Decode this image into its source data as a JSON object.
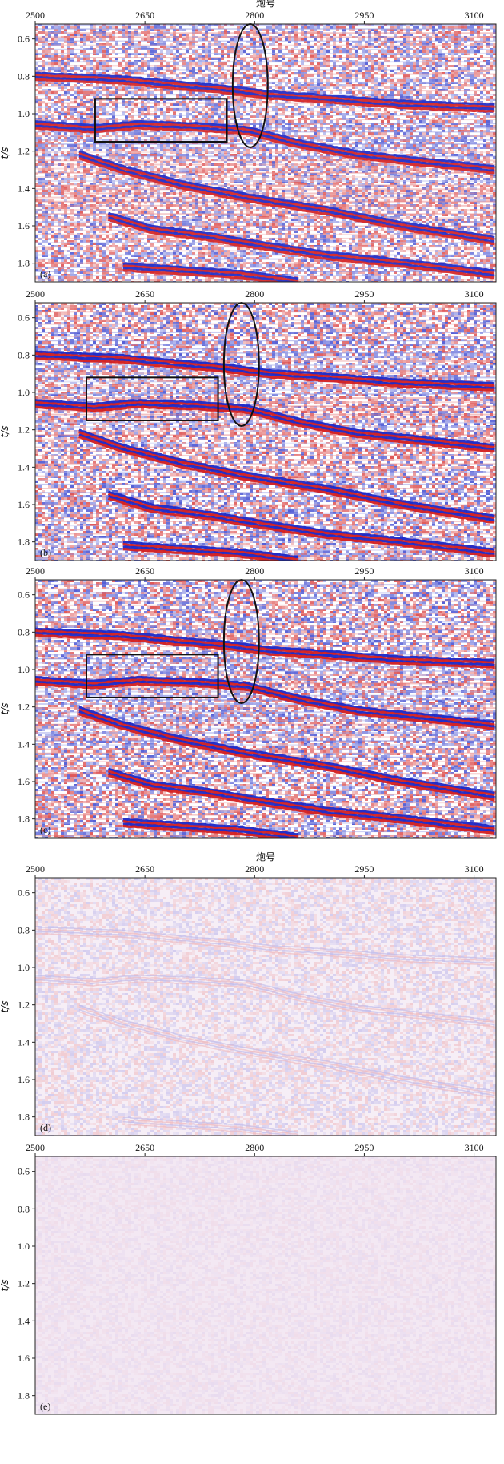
{
  "figure": {
    "x_axis_title": "炮号",
    "y_axis_title": "t/s"
  },
  "chart_data": [
    {
      "type": "heatmap",
      "panel": "(a)",
      "colormap": [
        "#d42020",
        "#ffffff",
        "#1a28c8"
      ],
      "xlim": [
        2500,
        3130
      ],
      "ylim": [
        1.9,
        0.52
      ],
      "x_ticks": [
        2500,
        2650,
        2800,
        2950,
        3100
      ],
      "x_tick_labels": [
        "2500",
        "2650",
        "2800",
        "2950",
        "3100"
      ],
      "y_ticks": [
        0.6,
        0.8,
        1.0,
        1.2,
        1.4,
        1.6,
        1.8
      ],
      "y_tick_labels": [
        "0.6",
        "0.8",
        "1.0",
        "1.2",
        "1.4",
        "1.6",
        "1.8"
      ],
      "x_axis_title_shown": true,
      "intensity": 0.95,
      "reflectors": [
        {
          "x": [
            2500,
            2620,
            2700,
            2760,
            2820,
            2900,
            3000,
            3130
          ],
          "t": [
            0.8,
            0.82,
            0.85,
            0.87,
            0.9,
            0.92,
            0.95,
            0.97
          ]
        },
        {
          "x": [
            2500,
            2580,
            2640,
            2720,
            2790,
            2860,
            2940,
            3130
          ],
          "t": [
            1.06,
            1.08,
            1.06,
            1.07,
            1.09,
            1.16,
            1.22,
            1.3
          ]
        },
        {
          "x": [
            2560,
            2620,
            2700,
            2790,
            2900,
            3000,
            3130
          ],
          "t": [
            1.22,
            1.3,
            1.38,
            1.45,
            1.52,
            1.6,
            1.68
          ]
        },
        {
          "x": [
            2600,
            2660,
            2740,
            2800,
            2900,
            3000,
            3130
          ],
          "t": [
            1.55,
            1.62,
            1.66,
            1.7,
            1.76,
            1.8,
            1.86
          ]
        },
        {
          "x": [
            2620,
            2700,
            2780,
            2860
          ],
          "t": [
            1.82,
            1.84,
            1.86,
            1.9
          ]
        }
      ],
      "annotations": [
        {
          "shape": "rectangle",
          "x": [
            2582,
            2762
          ],
          "t": [
            0.92,
            1.15
          ]
        },
        {
          "shape": "ellipse",
          "x": [
            2770,
            2818
          ],
          "t": [
            0.52,
            1.18
          ]
        }
      ]
    },
    {
      "type": "heatmap",
      "panel": "(b)",
      "colormap": [
        "#d42020",
        "#ffffff",
        "#1a28c8"
      ],
      "xlim": [
        2500,
        3130
      ],
      "ylim": [
        1.9,
        0.52
      ],
      "x_ticks": [
        2500,
        2650,
        2800,
        2950,
        3100
      ],
      "x_tick_labels": [
        "2500",
        "2650",
        "2800",
        "2950",
        "3100"
      ],
      "y_ticks": [
        0.6,
        0.8,
        1.0,
        1.2,
        1.4,
        1.6,
        1.8
      ],
      "y_tick_labels": [
        "0.6",
        "0.8",
        "1.0",
        "1.2",
        "1.4",
        "1.6",
        "1.8"
      ],
      "x_axis_title_shown": false,
      "intensity": 1.0,
      "reflectors": [
        {
          "x": [
            2500,
            2620,
            2700,
            2760,
            2820,
            2900,
            3000,
            3130
          ],
          "t": [
            0.8,
            0.82,
            0.85,
            0.87,
            0.9,
            0.92,
            0.95,
            0.97
          ]
        },
        {
          "x": [
            2500,
            2580,
            2640,
            2720,
            2790,
            2860,
            2940,
            3130
          ],
          "t": [
            1.06,
            1.08,
            1.06,
            1.07,
            1.09,
            1.16,
            1.22,
            1.3
          ]
        },
        {
          "x": [
            2560,
            2620,
            2700,
            2790,
            2900,
            3000,
            3130
          ],
          "t": [
            1.22,
            1.3,
            1.38,
            1.45,
            1.52,
            1.6,
            1.68
          ]
        },
        {
          "x": [
            2600,
            2660,
            2740,
            2800,
            2900,
            3000,
            3130
          ],
          "t": [
            1.55,
            1.62,
            1.66,
            1.7,
            1.76,
            1.8,
            1.86
          ]
        },
        {
          "x": [
            2620,
            2700,
            2780,
            2860
          ],
          "t": [
            1.82,
            1.84,
            1.86,
            1.9
          ]
        }
      ],
      "annotations": [
        {
          "shape": "rectangle",
          "x": [
            2570,
            2750
          ],
          "t": [
            0.92,
            1.15
          ]
        },
        {
          "shape": "ellipse",
          "x": [
            2758,
            2806
          ],
          "t": [
            0.52,
            1.18
          ]
        }
      ]
    },
    {
      "type": "heatmap",
      "panel": "(c)",
      "colormap": [
        "#d42020",
        "#ffffff",
        "#1a28c8"
      ],
      "xlim": [
        2500,
        3130
      ],
      "ylim": [
        1.9,
        0.52
      ],
      "x_ticks": [
        2500,
        2650,
        2800,
        2950,
        3100
      ],
      "x_tick_labels": [
        "2500",
        "2650",
        "2800",
        "2950",
        "3100"
      ],
      "y_ticks": [
        0.6,
        0.8,
        1.0,
        1.2,
        1.4,
        1.6,
        1.8
      ],
      "y_tick_labels": [
        "0.6",
        "0.8",
        "1.0",
        "1.2",
        "1.4",
        "1.6",
        "1.8"
      ],
      "x_axis_title_shown": false,
      "intensity": 1.0,
      "reflectors": [
        {
          "x": [
            2500,
            2620,
            2700,
            2760,
            2820,
            2900,
            3000,
            3130
          ],
          "t": [
            0.8,
            0.82,
            0.85,
            0.87,
            0.9,
            0.92,
            0.95,
            0.97
          ]
        },
        {
          "x": [
            2500,
            2580,
            2640,
            2720,
            2790,
            2860,
            2940,
            3130
          ],
          "t": [
            1.06,
            1.08,
            1.06,
            1.07,
            1.09,
            1.16,
            1.22,
            1.3
          ]
        },
        {
          "x": [
            2560,
            2620,
            2700,
            2790,
            2900,
            3000,
            3130
          ],
          "t": [
            1.22,
            1.3,
            1.38,
            1.45,
            1.52,
            1.6,
            1.68
          ]
        },
        {
          "x": [
            2600,
            2660,
            2740,
            2800,
            2900,
            3000,
            3130
          ],
          "t": [
            1.55,
            1.62,
            1.66,
            1.7,
            1.76,
            1.8,
            1.86
          ]
        },
        {
          "x": [
            2620,
            2700,
            2780,
            2860
          ],
          "t": [
            1.82,
            1.84,
            1.86,
            1.9
          ]
        }
      ],
      "annotations": [
        {
          "shape": "rectangle",
          "x": [
            2570,
            2750
          ],
          "t": [
            0.92,
            1.15
          ]
        },
        {
          "shape": "ellipse",
          "x": [
            2758,
            2806
          ],
          "t": [
            0.52,
            1.18
          ]
        }
      ]
    },
    {
      "type": "heatmap",
      "panel": "(d)",
      "colormap": [
        "#e05858",
        "#f6eef6",
        "#5d5ad6"
      ],
      "xlim": [
        2500,
        3130
      ],
      "ylim": [
        1.9,
        0.52
      ],
      "x_ticks": [
        2500,
        2650,
        2800,
        2950,
        3100
      ],
      "x_tick_labels": [
        "2500",
        "2650",
        "2800",
        "2950",
        "3100"
      ],
      "y_ticks": [
        0.6,
        0.8,
        1.0,
        1.2,
        1.4,
        1.6,
        1.8
      ],
      "y_tick_labels": [
        "0.6",
        "0.8",
        "1.0",
        "1.2",
        "1.4",
        "1.6",
        "1.8"
      ],
      "x_axis_title_shown": true,
      "intensity": 0.3,
      "reflectors": [
        {
          "x": [
            2500,
            2620,
            2700,
            2760,
            2820,
            2900,
            3000,
            3130
          ],
          "t": [
            0.8,
            0.82,
            0.85,
            0.87,
            0.9,
            0.92,
            0.95,
            0.97
          ]
        },
        {
          "x": [
            2500,
            2580,
            2640,
            2720,
            2790,
            2860,
            2940,
            3130
          ],
          "t": [
            1.06,
            1.08,
            1.06,
            1.07,
            1.09,
            1.16,
            1.22,
            1.3
          ]
        },
        {
          "x": [
            2560,
            2620,
            2700,
            2790,
            2900,
            3000,
            3130
          ],
          "t": [
            1.22,
            1.3,
            1.38,
            1.45,
            1.52,
            1.6,
            1.68
          ]
        },
        {
          "x": [
            2620,
            2700,
            2780,
            2860
          ],
          "t": [
            1.82,
            1.84,
            1.86,
            1.9
          ]
        }
      ],
      "annotations": []
    },
    {
      "type": "heatmap",
      "panel": "(e)",
      "colormap": [
        "#d46a8a",
        "#f3e8f3",
        "#7c5ac8"
      ],
      "xlim": [
        2500,
        3130
      ],
      "ylim": [
        1.9,
        0.52
      ],
      "x_ticks": [
        2500,
        2650,
        2800,
        2950,
        3100
      ],
      "x_tick_labels": [
        "2500",
        "2650",
        "2800",
        "2950",
        "3100"
      ],
      "y_ticks": [
        0.6,
        0.8,
        1.0,
        1.2,
        1.4,
        1.6,
        1.8
      ],
      "y_tick_labels": [
        "0.6",
        "0.8",
        "1.0",
        "1.2",
        "1.4",
        "1.6",
        "1.8"
      ],
      "x_axis_title_shown": false,
      "intensity": 0.12,
      "reflectors": [],
      "annotations": []
    }
  ]
}
